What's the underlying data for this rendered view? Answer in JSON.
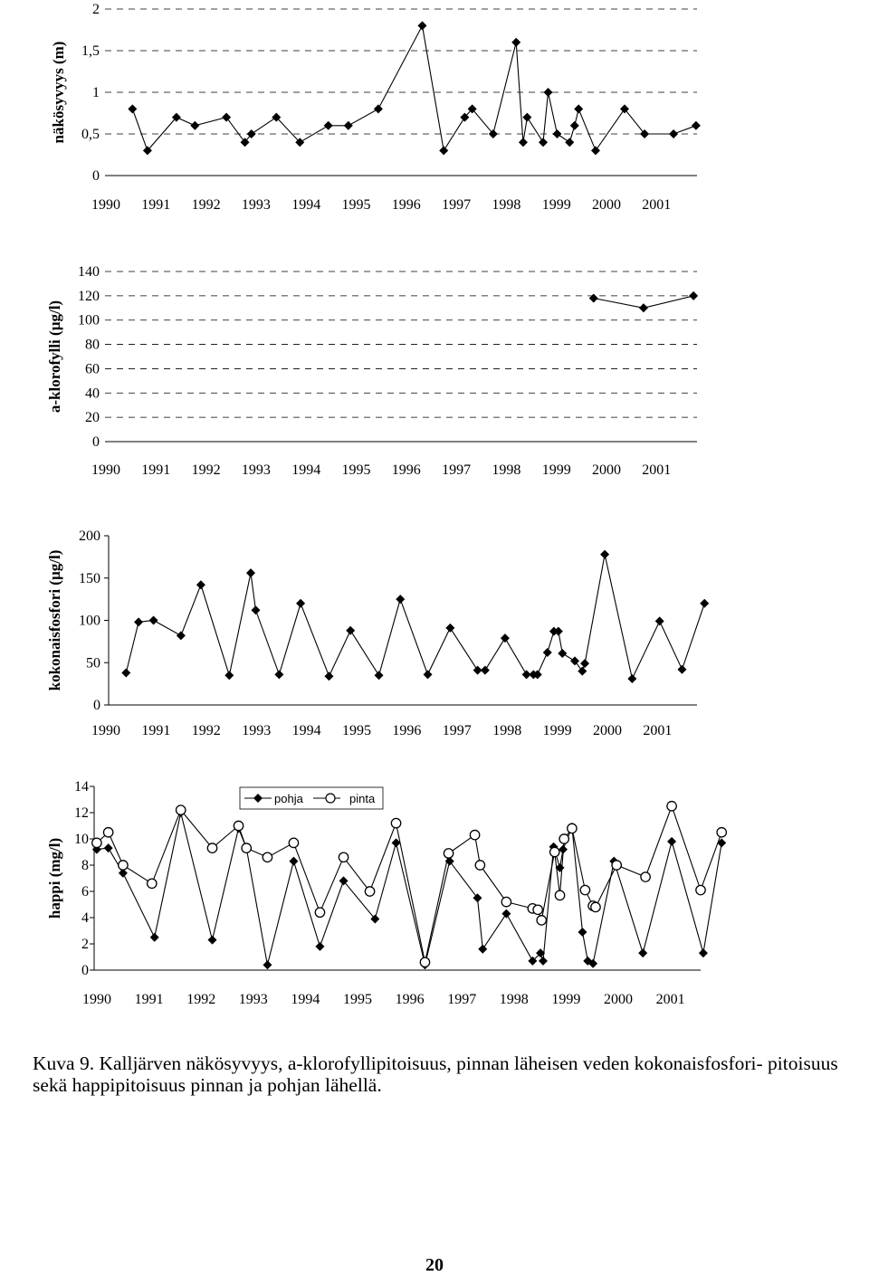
{
  "chart_data": [
    {
      "type": "line",
      "ylabel": "näkösyvyys (m)",
      "ylim": [
        0,
        2
      ],
      "yticks": [
        "0",
        "0,5",
        "1",
        "1,5",
        "2"
      ],
      "ytick_values": [
        0,
        0.5,
        1,
        1.5,
        2
      ],
      "xlim": [
        1990,
        2001.85
      ],
      "xticks": [
        "1990",
        "1991",
        "1992",
        "1993",
        "1994",
        "1995",
        "1996",
        "1997",
        "1998",
        "1999",
        "2000",
        "2001"
      ],
      "grid": true,
      "series": [
        {
          "marker": "diamond",
          "x": [
            1990.55,
            1990.85,
            1991.43,
            1991.8,
            1992.43,
            1992.8,
            1992.93,
            1993.43,
            1993.9,
            1994.47,
            1994.87,
            1995.47,
            1996.35,
            1996.78,
            1997.2,
            1997.35,
            1997.77,
            1998.23,
            1998.37,
            1998.45,
            1998.77,
            1998.87,
            1999.05,
            1999.3,
            1999.4,
            1999.48,
            1999.82,
            2000.4,
            2000.8,
            2001.38,
            2001.83
          ],
          "y": [
            0.8,
            0.3,
            0.7,
            0.6,
            0.7,
            0.4,
            0.5,
            0.7,
            0.4,
            0.6,
            0.6,
            0.8,
            1.8,
            0.3,
            0.7,
            0.8,
            0.5,
            1.6,
            0.4,
            0.7,
            0.4,
            1.0,
            0.5,
            0.4,
            0.6,
            0.8,
            0.3,
            0.8,
            0.5,
            0.5,
            0.6
          ]
        }
      ]
    },
    {
      "type": "line",
      "ylabel": "a-klorofylli (µg/l)",
      "ylim": [
        0,
        140
      ],
      "yticks": [
        "0",
        "20",
        "40",
        "60",
        "80",
        "100",
        "120",
        "140"
      ],
      "ytick_values": [
        0,
        20,
        40,
        60,
        80,
        100,
        120,
        140
      ],
      "xlim": [
        1990,
        2001.85
      ],
      "xticks": [
        "1990",
        "1991",
        "1992",
        "1993",
        "1994",
        "1995",
        "1996",
        "1997",
        "1998",
        "1999",
        "2000",
        "2001"
      ],
      "grid": true,
      "series": [
        {
          "marker": "diamond",
          "x": [
            1999.78,
            2000.78,
            2001.78
          ],
          "y": [
            118,
            110,
            120
          ]
        }
      ]
    },
    {
      "type": "line",
      "ylabel": "kokonaisfosfori (µg/l)",
      "ylim": [
        0,
        200
      ],
      "yticks": [
        "0",
        "50",
        "100",
        "150",
        "200"
      ],
      "ytick_values": [
        0,
        50,
        100,
        150,
        200
      ],
      "xlim": [
        1990,
        2001.8
      ],
      "xticks": [
        "1990",
        "1991",
        "1992",
        "1993",
        "1994",
        "1995",
        "1996",
        "1997",
        "1998",
        "1999",
        "2000",
        "2001"
      ],
      "grid": false,
      "series": [
        {
          "marker": "diamond",
          "x": [
            1990.35,
            1990.6,
            1990.9,
            1991.45,
            1991.85,
            1992.42,
            1992.85,
            1992.95,
            1993.42,
            1993.85,
            1994.42,
            1994.85,
            1995.42,
            1995.85,
            1996.4,
            1996.85,
            1997.4,
            1997.55,
            1997.95,
            1998.38,
            1998.52,
            1998.6,
            1998.8,
            1998.93,
            1999.02,
            1999.1,
            1999.35,
            1999.5,
            1999.55,
            1999.95,
            2000.5,
            2001.05,
            2001.5,
            2001.95
          ],
          "y": [
            38,
            98,
            100,
            82,
            142,
            35,
            156,
            112,
            36,
            120,
            34,
            88,
            35,
            125,
            36,
            91,
            41,
            41,
            79,
            36,
            36,
            36,
            62,
            87,
            87,
            61,
            52,
            40,
            49,
            178,
            31,
            99,
            42,
            120
          ]
        }
      ]
    },
    {
      "type": "line",
      "ylabel": "happi (mg/l)",
      "ylim": [
        0,
        14
      ],
      "yticks": [
        "0",
        "2",
        "4",
        "6",
        "8",
        "10",
        "12",
        "14"
      ],
      "ytick_values": [
        0,
        2,
        4,
        6,
        8,
        10,
        12,
        14
      ],
      "xlim": [
        1990,
        2001.55
      ],
      "xticks": [
        "1990",
        "1991",
        "1992",
        "1993",
        "1994",
        "1995",
        "1996",
        "1997",
        "1998",
        "1999",
        "2000",
        "2001"
      ],
      "grid": false,
      "legend": "top-center",
      "series": [
        {
          "name": "pohja",
          "marker": "diamond",
          "x": [
            1990.05,
            1990.27,
            1990.55,
            1991.15,
            1991.65,
            1992.25,
            1992.75,
            1992.9,
            1993.3,
            1993.8,
            1994.3,
            1994.75,
            1995.35,
            1995.75,
            1996.3,
            1996.77,
            1997.3,
            1997.4,
            1997.85,
            1998.35,
            1998.5,
            1998.55,
            1998.75,
            1998.87,
            1998.93,
            1999.1,
            1999.3,
            1999.4,
            1999.5,
            1999.9,
            2000.45,
            2001.0,
            2001.6,
            2001.95
          ],
          "y": [
            9.2,
            9.3,
            7.4,
            2.5,
            12.0,
            2.3,
            10.8,
            9.3,
            0.4,
            8.3,
            1.8,
            6.8,
            3.9,
            9.7,
            0.4,
            8.3,
            5.5,
            1.6,
            4.3,
            0.7,
            1.3,
            0.7,
            9.4,
            7.8,
            9.2,
            10.9,
            2.9,
            0.7,
            0.5,
            8.3,
            1.3,
            9.8,
            1.3,
            9.7
          ]
        },
        {
          "name": "pinta",
          "marker": "circle",
          "x": [
            1990.05,
            1990.27,
            1990.55,
            1991.1,
            1991.65,
            1992.25,
            1992.75,
            1992.9,
            1993.3,
            1993.8,
            1994.3,
            1994.75,
            1995.25,
            1995.75,
            1996.3,
            1996.75,
            1997.25,
            1997.35,
            1997.85,
            1998.35,
            1998.45,
            1998.52,
            1998.77,
            1998.87,
            1998.95,
            1999.1,
            1999.35,
            1999.5,
            1999.55,
            1999.95,
            2000.5,
            2001.0,
            2001.55,
            2001.95
          ],
          "y": [
            9.7,
            10.5,
            8.0,
            6.6,
            12.2,
            9.3,
            11.0,
            9.3,
            8.6,
            9.7,
            4.4,
            8.6,
            6.0,
            11.2,
            0.6,
            8.9,
            10.3,
            8.0,
            5.2,
            4.7,
            4.6,
            3.8,
            9.0,
            5.7,
            10.0,
            10.8,
            6.1,
            4.9,
            4.8,
            8.0,
            7.1,
            12.5,
            6.1,
            10.5
          ]
        }
      ]
    }
  ],
  "caption": "Kuva 9. Kalljärven näkösyvyys, a-klorofyllipitoisuus, pinnan läheisen veden kokonaisfosfori- pitoisuus sekä happipitoisuus pinnan ja pohjan lähellä.",
  "page_number": "20"
}
